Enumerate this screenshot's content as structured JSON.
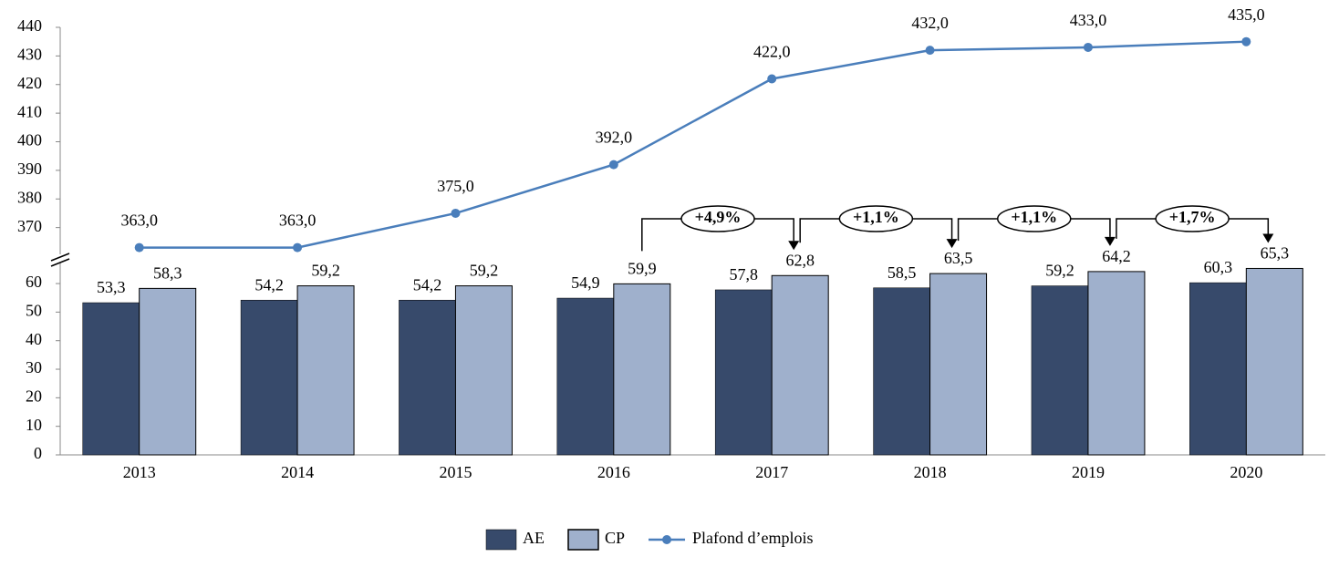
{
  "chart_data": {
    "type": "bar_line",
    "categories": [
      "2013",
      "2014",
      "2015",
      "2016",
      "2017",
      "2018",
      "2019",
      "2020"
    ],
    "series": [
      {
        "name": "AE",
        "type": "bar",
        "color": "#374a6b",
        "values": [
          53.3,
          54.2,
          54.2,
          54.9,
          57.8,
          58.5,
          59.2,
          60.3
        ],
        "value_labels": [
          "53,3",
          "54,2",
          "54,2",
          "54,9",
          "57,8",
          "58,5",
          "59,2",
          "60,3"
        ]
      },
      {
        "name": "CP",
        "type": "bar",
        "color": "#9fb0cc",
        "values": [
          58.3,
          59.2,
          59.2,
          59.9,
          62.8,
          63.5,
          64.2,
          65.3
        ],
        "value_labels": [
          "58,3",
          "59,2",
          "59,2",
          "59,9",
          "62,8",
          "63,5",
          "64,2",
          "65,3"
        ]
      },
      {
        "name": "Plafond d’emplois",
        "type": "line",
        "axis": "y2",
        "color": "#4a7ebb",
        "values": [
          363,
          363,
          375,
          392,
          422,
          432,
          433,
          435
        ],
        "value_labels": [
          "363,0",
          "363,0",
          "375,0",
          "392,0",
          "422,0",
          "432,0",
          "433,0",
          "435,0"
        ]
      }
    ],
    "ylim": [
      0,
      68
    ],
    "yticks": [
      0,
      10,
      20,
      30,
      40,
      50,
      60
    ],
    "y2lim": [
      360,
      440
    ],
    "y2ticks": [
      370,
      380,
      390,
      400,
      410,
      420,
      430,
      440
    ],
    "annotations": [
      "+4,9%",
      "+1,1%",
      "+1,1%",
      "+1,7%"
    ],
    "legend": "bottom"
  }
}
